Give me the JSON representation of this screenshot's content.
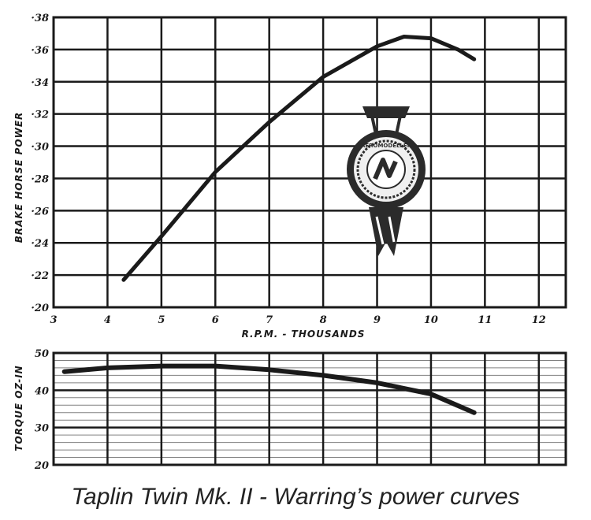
{
  "caption": "Taplin Twin Mk. II - Warring’s power curves",
  "colors": {
    "ink": "#1a1a1a",
    "grid": "#1a1a1a",
    "seal": "#2b2b2b"
  },
  "seal": {
    "icon": "award-seal-icon",
    "text": "AEROMODELLER"
  },
  "chart_data": [
    {
      "type": "line",
      "ylabel": "BRAKE HORSE POWER",
      "xlabel": "R.P.M. - THOUSANDS",
      "xlim": [
        3,
        12.5
      ],
      "ylim": [
        0.2,
        0.38
      ],
      "x_ticks": [
        "3",
        "4",
        "5",
        "6",
        "7",
        "8",
        "9",
        "10",
        "11",
        "12"
      ],
      "y_ticks": [
        "·20",
        "·22",
        "·24",
        "·26",
        "·28",
        "·30",
        "·32",
        "·34",
        "·36",
        "·38"
      ],
      "grid": true,
      "series": [
        {
          "x": [
            4.3,
            5,
            6,
            7,
            8,
            9,
            9.5,
            10,
            10.5,
            10.8
          ],
          "y": [
            0.217,
            0.244,
            0.284,
            0.315,
            0.343,
            0.362,
            0.368,
            0.367,
            0.36,
            0.354
          ]
        }
      ]
    },
    {
      "type": "line",
      "ylabel": "TORQUE OZ-IN",
      "xlim": [
        3,
        12.5
      ],
      "ylim": [
        20,
        50
      ],
      "y_ticks": [
        "20",
        "30",
        "40",
        "50"
      ],
      "grid": true,
      "series": [
        {
          "x": [
            3.2,
            4,
            5,
            6,
            7,
            8,
            9,
            10,
            10.8
          ],
          "y": [
            45,
            46,
            46.5,
            46.5,
            45.5,
            44,
            42,
            39,
            34
          ]
        }
      ]
    }
  ]
}
